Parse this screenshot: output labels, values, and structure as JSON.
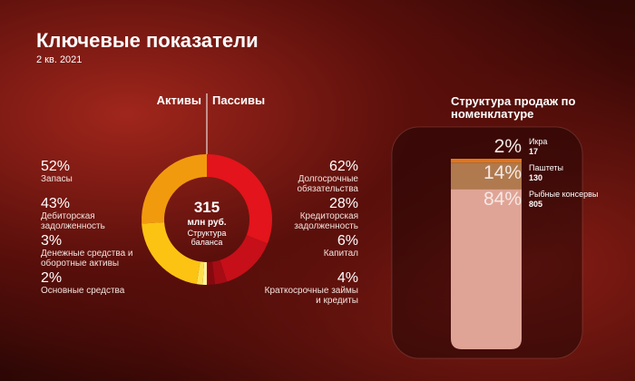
{
  "header": {
    "title": "Ключевые показатели",
    "subtitle": "2 кв. 2021"
  },
  "chart_data": [
    {
      "type": "donut",
      "total": 315,
      "unit": "млн руб.",
      "center_label": "Структура баланса",
      "series": [
        {
          "name": "Активы",
          "categories": [
            "Запасы",
            "Дебиторская задолженность",
            "Денежные средства и оборотные активы",
            "Основные средства"
          ],
          "values": [
            52,
            43,
            3,
            2
          ],
          "value_labels": [
            "52%",
            "43%",
            "3%",
            "2%"
          ],
          "colors": [
            "#f29a0e",
            "#fcc313",
            "#fde050",
            "#fff29a"
          ]
        },
        {
          "name": "Пассивы",
          "categories": [
            "Долгосрочные обязательства",
            "Кредиторская задолженность",
            "Капитал",
            "Краткосрочные займы и кредиты"
          ],
          "values": [
            62,
            28,
            6,
            4
          ],
          "value_labels": [
            "62%",
            "28%",
            "6%",
            "4%"
          ],
          "colors": [
            "#e3141b",
            "#c60f19",
            "#a60c14",
            "#86090f"
          ]
        }
      ]
    },
    {
      "type": "stacked_bar",
      "title": "Структура продаж по номенклатуре",
      "categories": [
        "Икра",
        "Паштеты",
        "Рыбные консервы"
      ],
      "values": [
        2,
        14,
        84
      ],
      "value_labels": [
        "2%",
        "14%",
        "84%"
      ],
      "counts": [
        17,
        130,
        805
      ],
      "colors": [
        "#e2761c",
        "#b07a4e",
        "#e0a496"
      ]
    }
  ]
}
